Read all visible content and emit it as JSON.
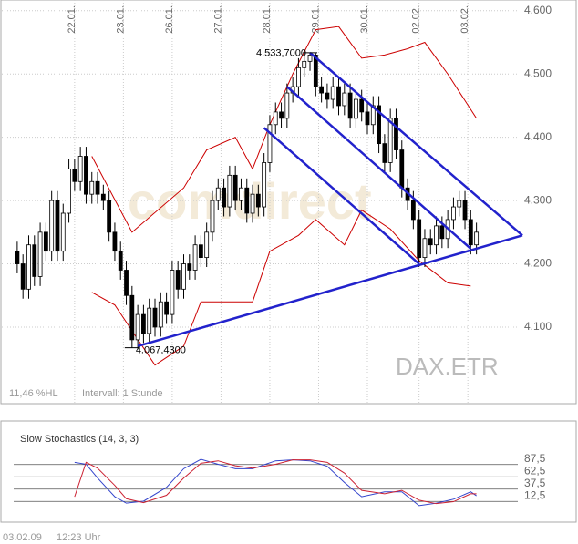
{
  "chart_data": [
    {
      "type": "candlestick",
      "xlim": [
        -3,
        88
      ],
      "ylim": [
        3979,
        4617
      ],
      "xticks": [
        {
          "value": 10,
          "label": "22.01."
        },
        {
          "value": 18.5,
          "label": "23.01."
        },
        {
          "value": 27,
          "label": "26.01."
        },
        {
          "value": 35.5,
          "label": "27.01."
        },
        {
          "value": 44,
          "label": "28.01."
        },
        {
          "value": 52.5,
          "label": "29.01."
        },
        {
          "value": 61,
          "label": "30.01."
        },
        {
          "value": 70,
          "label": "02.02."
        },
        {
          "value": 78.5,
          "label": "03.02."
        }
      ],
      "yticks": [
        {
          "value": 4100,
          "label": "4.100"
        },
        {
          "value": 4200,
          "label": "4.200"
        },
        {
          "value": 4300,
          "label": "4.300"
        },
        {
          "value": 4400,
          "label": "4.400"
        },
        {
          "value": 4500,
          "label": "4.500"
        },
        {
          "value": 4600,
          "label": "4.600"
        }
      ],
      "grid": true,
      "open": [
        4220,
        4200,
        4160,
        4230,
        4180,
        4250,
        4220,
        4300,
        4220,
        4280,
        4350,
        4330,
        4370,
        4310,
        4330,
        4310,
        4300,
        4250,
        4220,
        4190,
        4150,
        4080,
        4120,
        4090,
        4130,
        4100,
        4140,
        4120,
        4190,
        4160,
        4200,
        4190,
        4230,
        4210,
        4250,
        4300,
        4320,
        4290,
        4340,
        4300,
        4320,
        4280,
        4310,
        4290,
        4360,
        4420,
        4440,
        4430,
        4470,
        4480,
        4510,
        4520,
        4530,
        4480,
        4470,
        4460,
        4480,
        4450,
        4470,
        4430,
        4460,
        4440,
        4420,
        4450,
        4390,
        4360,
        4430,
        4380,
        4320,
        4300,
        4270,
        4210,
        4240,
        4230,
        4260,
        4240,
        4270,
        4290,
        4300,
        4270,
        4230
      ],
      "high": [
        4235,
        4215,
        4245,
        4245,
        4265,
        4265,
        4315,
        4315,
        4295,
        4365,
        4365,
        4385,
        4385,
        4345,
        4345,
        4325,
        4315,
        4265,
        4235,
        4205,
        4165,
        4135,
        4135,
        4145,
        4145,
        4155,
        4155,
        4205,
        4205,
        4215,
        4215,
        4245,
        4245,
        4265,
        4315,
        4335,
        4335,
        4355,
        4355,
        4335,
        4335,
        4325,
        4325,
        4375,
        4435,
        4455,
        4455,
        4485,
        4495,
        4525,
        4535,
        4533.7,
        4533,
        4495,
        4485,
        4495,
        4495,
        4485,
        4485,
        4475,
        4475,
        4455,
        4465,
        4465,
        4405,
        4445,
        4445,
        4395,
        4335,
        4315,
        4285,
        4255,
        4255,
        4275,
        4275,
        4285,
        4305,
        4315,
        4315,
        4285,
        4265
      ],
      "low": [
        4185,
        4145,
        4145,
        4165,
        4165,
        4205,
        4205,
        4205,
        4205,
        4265,
        4315,
        4315,
        4295,
        4295,
        4295,
        4285,
        4235,
        4205,
        4175,
        4135,
        4067.43,
        4065,
        4075,
        4075,
        4085,
        4085,
        4105,
        4105,
        4145,
        4145,
        4175,
        4175,
        4195,
        4195,
        4235,
        4285,
        4275,
        4275,
        4285,
        4285,
        4265,
        4265,
        4275,
        4275,
        4345,
        4405,
        4415,
        4415,
        4455,
        4465,
        4495,
        4505,
        4465,
        4455,
        4445,
        4445,
        4435,
        4435,
        4415,
        4415,
        4425,
        4405,
        4405,
        4375,
        4345,
        4345,
        4365,
        4305,
        4285,
        4255,
        4195,
        4195,
        4215,
        4215,
        4225,
        4225,
        4255,
        4275,
        4255,
        4215,
        4215
      ],
      "close": [
        4200,
        4160,
        4230,
        4180,
        4250,
        4220,
        4300,
        4220,
        4280,
        4350,
        4330,
        4370,
        4310,
        4330,
        4310,
        4300,
        4250,
        4220,
        4190,
        4150,
        4080,
        4120,
        4090,
        4130,
        4100,
        4140,
        4120,
        4190,
        4160,
        4200,
        4190,
        4230,
        4210,
        4250,
        4300,
        4320,
        4290,
        4340,
        4300,
        4320,
        4280,
        4310,
        4290,
        4360,
        4420,
        4440,
        4430,
        4470,
        4480,
        4510,
        4520,
        4530,
        4480,
        4470,
        4460,
        4480,
        4450,
        4470,
        4430,
        4460,
        4440,
        4420,
        4450,
        4390,
        4360,
        4430,
        4380,
        4320,
        4300,
        4270,
        4210,
        4240,
        4230,
        4260,
        4240,
        4270,
        4290,
        4300,
        4270,
        4230,
        4250
      ],
      "upper_band": {
        "color": "#cc0000",
        "x": [
          13,
          20,
          29,
          33,
          38,
          41,
          44,
          48,
          52,
          56,
          60,
          64,
          68,
          71,
          75,
          80
        ],
        "values": [
          4370,
          4250,
          4320,
          4380,
          4400,
          4350,
          4420,
          4500,
          4570,
          4575,
          4525,
          4530,
          4540,
          4550,
          4500,
          4430
        ]
      },
      "lower_band": {
        "color": "#cc0000",
        "x": [
          13,
          17,
          24,
          29,
          32,
          41,
          44,
          49,
          52,
          57,
          60,
          65,
          70,
          75,
          79
        ],
        "values": [
          4155,
          4135,
          4040,
          4070,
          4140,
          4140,
          4220,
          4245,
          4270,
          4230,
          4285,
          4255,
          4205,
          4170,
          4165
        ]
      },
      "trend_color": "#2222cc",
      "trend_lines": [
        {
          "x": [
            21,
            88
          ],
          "values": [
            4070,
            4245
          ]
        },
        {
          "x": [
            51,
            88
          ],
          "values": [
            4533.7,
            4245
          ]
        },
        {
          "x": [
            47,
            79
          ],
          "values": [
            4480,
            4224
          ]
        },
        {
          "x": [
            43,
            70
          ],
          "values": [
            4415,
            4200
          ]
        }
      ],
      "annotations": [
        {
          "x": 51,
          "value": 4533.7,
          "label": "4.533,7000",
          "side": "left"
        },
        {
          "x": 20,
          "value": 4067.43,
          "label": "4.067,4300",
          "side": "right"
        }
      ],
      "watermark": "comdirect",
      "symbol": "DAX.ETR",
      "info": "11,46 %HL",
      "interval": "Intervall: 1 Stunde"
    },
    {
      "type": "line",
      "title": "Slow Stochastics (14, 3, 3)",
      "xlim": [
        -3,
        88
      ],
      "ylim": [
        0,
        100
      ],
      "yticks": [
        {
          "value": 87.5,
          "label": "87,5"
        },
        {
          "value": 62.5,
          "label": "62,5"
        },
        {
          "value": 37.5,
          "label": "37,5"
        },
        {
          "value": 12.5,
          "label": "12,5"
        }
      ],
      "x": [
        10,
        12,
        14,
        17,
        19,
        22,
        26,
        29,
        32,
        35,
        38,
        41,
        45,
        48,
        51,
        54,
        57,
        60,
        64,
        67,
        70,
        73,
        76,
        79,
        80
      ],
      "series": [
        {
          "color": "#3344cc",
          "values": [
            92,
            88,
            60,
            22,
            9,
            13,
            41,
            79,
            98,
            88,
            79,
            79,
            95,
            97,
            95,
            84,
            51,
            22,
            32,
            32,
            4,
            9,
            17,
            32,
            24
          ]
        },
        {
          "color": "#cc2233",
          "values": [
            22,
            92,
            80,
            45,
            18,
            10,
            25,
            60,
            90,
            95,
            85,
            80,
            88,
            97,
            97,
            92,
            70,
            35,
            28,
            35,
            15,
            8,
            12,
            28,
            28
          ]
        }
      ]
    }
  ],
  "footer": {
    "date": "03.02.09",
    "time": "12:23 Uhr"
  }
}
